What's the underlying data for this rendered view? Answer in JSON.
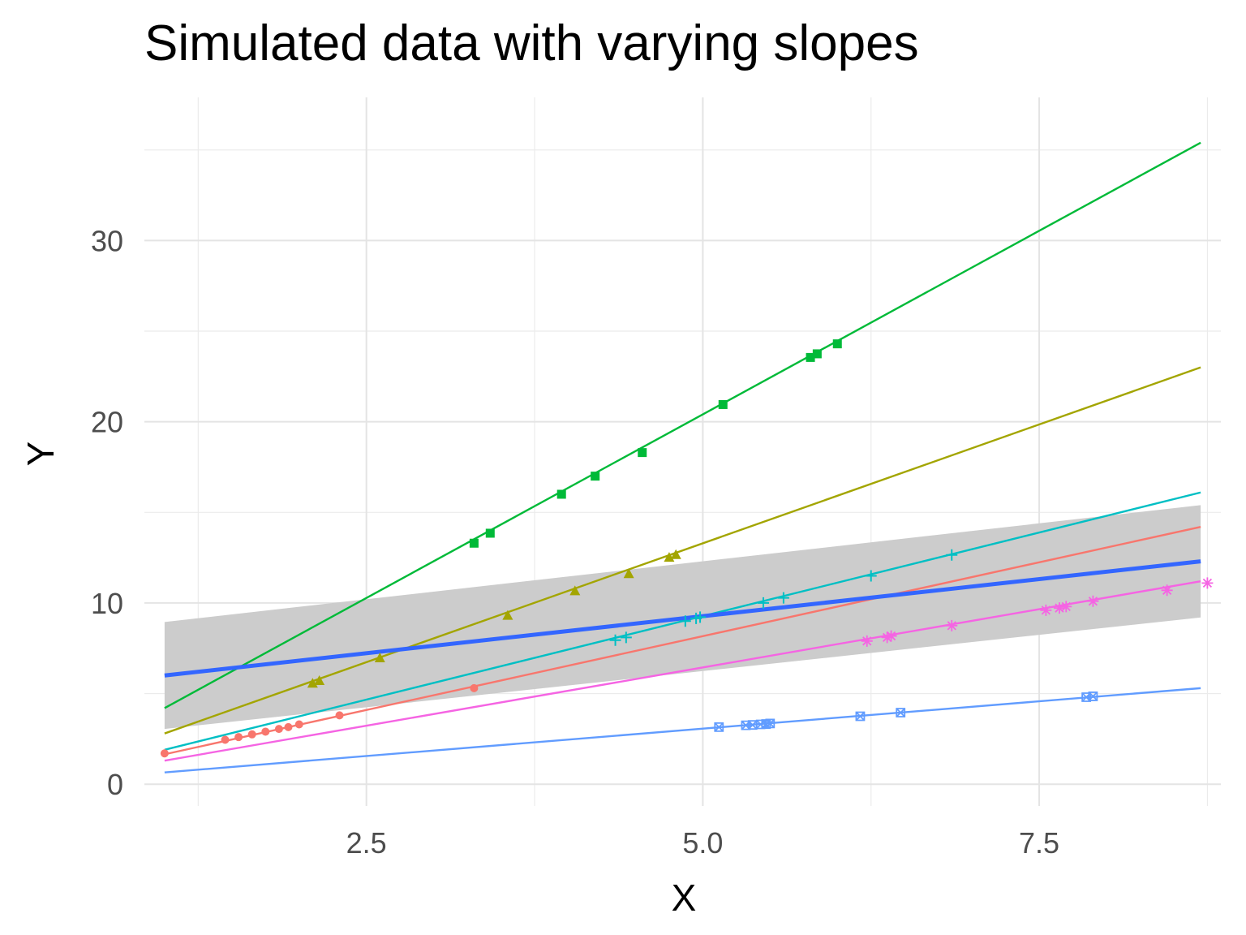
{
  "chart_data": {
    "type": "scatter",
    "title": "Simulated data with varying slopes",
    "xlabel": "X",
    "ylabel": "Y",
    "xlim": [
      0.85,
      8.85
    ],
    "ylim": [
      -1.2,
      37.9
    ],
    "x_ticks": [
      2.5,
      5.0,
      7.5
    ],
    "x_tick_labels": [
      "2.5",
      "5.0",
      "7.5"
    ],
    "y_ticks": [
      0,
      10,
      20,
      30
    ],
    "y_tick_labels": [
      "0",
      "10",
      "20",
      "30"
    ],
    "grid": true,
    "legend": "none",
    "series": [
      {
        "color": "#F8766D",
        "marker": "circle",
        "points": [
          [
            1.0,
            1.7
          ],
          [
            1.45,
            2.45
          ],
          [
            1.55,
            2.6
          ],
          [
            1.65,
            2.75
          ],
          [
            1.75,
            2.9
          ],
          [
            1.85,
            3.05
          ],
          [
            1.92,
            3.15
          ],
          [
            2.0,
            3.3
          ],
          [
            2.3,
            3.8
          ],
          [
            3.3,
            5.3
          ]
        ],
        "fit": [
          [
            1.0,
            1.65
          ],
          [
            8.7,
            14.2
          ]
        ]
      },
      {
        "color": "#A3A500",
        "marker": "triangle",
        "points": [
          [
            2.1,
            5.55
          ],
          [
            2.15,
            5.7
          ],
          [
            2.6,
            6.95
          ],
          [
            3.55,
            9.3
          ],
          [
            4.05,
            10.65
          ],
          [
            4.45,
            11.6
          ],
          [
            4.75,
            12.5
          ],
          [
            4.8,
            12.65
          ]
        ],
        "fit": [
          [
            1.0,
            2.8
          ],
          [
            8.7,
            23.0
          ]
        ]
      },
      {
        "color": "#00BA38",
        "marker": "square",
        "points": [
          [
            3.3,
            13.3
          ],
          [
            3.42,
            13.85
          ],
          [
            3.95,
            16.0
          ],
          [
            4.2,
            17.0
          ],
          [
            4.55,
            18.3
          ],
          [
            5.15,
            20.95
          ],
          [
            5.8,
            23.55
          ],
          [
            5.85,
            23.75
          ],
          [
            6.0,
            24.3
          ]
        ],
        "fit": [
          [
            1.0,
            4.2
          ],
          [
            8.7,
            35.4
          ]
        ]
      },
      {
        "color": "#00BFC4",
        "marker": "plus",
        "points": [
          [
            4.35,
            7.95
          ],
          [
            4.43,
            8.1
          ],
          [
            4.87,
            9.0
          ],
          [
            4.95,
            9.15
          ],
          [
            4.98,
            9.22
          ],
          [
            5.45,
            10.0
          ],
          [
            5.6,
            10.28
          ],
          [
            6.25,
            11.5
          ],
          [
            6.85,
            12.65
          ]
        ],
        "fit": [
          [
            1.0,
            1.9
          ],
          [
            8.7,
            16.1
          ]
        ]
      },
      {
        "color": "#619CFF",
        "marker": "square-x",
        "points": [
          [
            5.12,
            3.15
          ],
          [
            5.32,
            3.25
          ],
          [
            5.37,
            3.27
          ],
          [
            5.43,
            3.3
          ],
          [
            5.47,
            3.32
          ],
          [
            5.5,
            3.35
          ],
          [
            6.17,
            3.75
          ],
          [
            6.47,
            3.95
          ],
          [
            7.85,
            4.8
          ],
          [
            7.9,
            4.85
          ]
        ],
        "fit": [
          [
            1.0,
            0.65
          ],
          [
            8.7,
            5.3
          ]
        ]
      },
      {
        "color": "#F564E3",
        "marker": "asterisk",
        "points": [
          [
            6.22,
            7.9
          ],
          [
            6.37,
            8.1
          ],
          [
            6.4,
            8.18
          ],
          [
            6.85,
            8.75
          ],
          [
            7.55,
            9.6
          ],
          [
            7.65,
            9.72
          ],
          [
            7.7,
            9.8
          ],
          [
            7.9,
            10.1
          ],
          [
            8.45,
            10.7
          ],
          [
            8.75,
            11.1
          ]
        ],
        "fit": [
          [
            1.0,
            1.3
          ],
          [
            8.7,
            11.2
          ]
        ]
      }
    ],
    "overall_fit": {
      "color": "#3366FF",
      "line": [
        [
          1.0,
          6.0
        ],
        [
          8.7,
          12.3
        ]
      ],
      "band": {
        "x": [
          1.0,
          8.7
        ],
        "lower": [
          3.05,
          9.2
        ],
        "upper": [
          8.95,
          15.4
        ],
        "color": "#CCCCCC"
      }
    }
  }
}
